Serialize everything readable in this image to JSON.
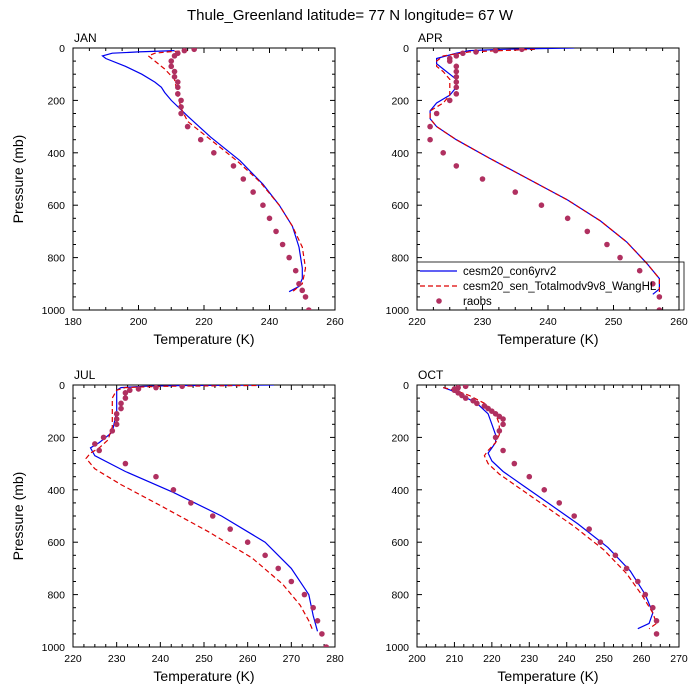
{
  "title": "Thule_Greenland  latitude= 77 N longitude= 67 W",
  "colors": {
    "model1": "#0000ee",
    "model2": "#dd0000",
    "obs": "#b03060"
  },
  "legend": {
    "model1": "cesm20_con6yrv2",
    "model2": "cesm20_sen_Totalmodv9v8_WangHL",
    "obs": "raobs"
  },
  "chart_data": [
    {
      "type": "line",
      "label": "JAN",
      "xlabel": "Temperature (K)",
      "ylabel": "Pressure (mb)",
      "xlim": [
        180,
        260
      ],
      "xticks": [
        180,
        200,
        220,
        240,
        260
      ],
      "ylim": [
        0,
        1000
      ],
      "yticks": [
        0,
        200,
        400,
        600,
        800,
        1000
      ],
      "y_inverted": true,
      "series": [
        {
          "name": "cesm20_con6yrv2",
          "style": "solid",
          "x": [
            211,
            200,
            192,
            189,
            190,
            196,
            201,
            205,
            207,
            208,
            210,
            215,
            222,
            231,
            238,
            243,
            247,
            249,
            250,
            250,
            249,
            246
          ],
          "y": [
            10,
            15,
            20,
            30,
            40,
            70,
            100,
            130,
            150,
            170,
            200,
            260,
            340,
            430,
            520,
            600,
            680,
            760,
            840,
            880,
            910,
            930
          ]
        },
        {
          "name": "cesm20_sen_Totalmodv9v8_WangHL",
          "style": "dashed",
          "x": [
            215,
            209,
            205,
            203,
            205,
            208,
            211,
            212,
            213,
            215,
            222,
            230,
            237,
            243,
            247,
            250,
            251,
            250,
            247
          ],
          "y": [
            10,
            15,
            20,
            30,
            50,
            80,
            120,
            180,
            230,
            280,
            350,
            430,
            510,
            600,
            680,
            760,
            840,
            900,
            930
          ]
        },
        {
          "name": "raobs",
          "style": "markers",
          "x": [
            217,
            214,
            212,
            211,
            210,
            210,
            211,
            211,
            212,
            212,
            212,
            213,
            213,
            213,
            215,
            219,
            223,
            229,
            232,
            235,
            238,
            240,
            242,
            244,
            246,
            248,
            249,
            250,
            251,
            252
          ],
          "y": [
            5,
            10,
            20,
            30,
            50,
            70,
            90,
            110,
            130,
            150,
            175,
            200,
            225,
            250,
            300,
            350,
            400,
            450,
            500,
            550,
            600,
            650,
            700,
            750,
            800,
            850,
            900,
            925,
            950,
            1000
          ]
        }
      ]
    },
    {
      "type": "line",
      "label": "APR",
      "xlabel": "Temperature (K)",
      "ylabel": "",
      "xlim": [
        220,
        260
      ],
      "xticks": [
        220,
        230,
        240,
        250,
        260
      ],
      "ylim": [
        0,
        1000
      ],
      "yticks": [
        0,
        200,
        400,
        600,
        800,
        1000
      ],
      "y_inverted": true,
      "series": [
        {
          "name": "cesm20_con6yrv2",
          "style": "solid",
          "x": [
            244,
            233,
            228,
            226,
            223,
            223,
            224,
            225,
            226,
            226,
            225,
            223,
            222,
            222,
            223,
            226,
            231,
            237,
            243,
            248,
            252,
            255,
            257,
            257,
            256
          ],
          "y": [
            0,
            5,
            10,
            20,
            40,
            60,
            80,
            100,
            120,
            150,
            180,
            210,
            240,
            270,
            300,
            350,
            420,
            500,
            580,
            660,
            740,
            820,
            880,
            920,
            940
          ]
        },
        {
          "name": "cesm20_sen_Totalmodv9v8_WangHL",
          "style": "dashed",
          "x": [
            238,
            228,
            224,
            223,
            223,
            224,
            225,
            225,
            225,
            224,
            222,
            222,
            223,
            226,
            231,
            237,
            243,
            248,
            252,
            255,
            257,
            257
          ],
          "y": [
            5,
            15,
            30,
            50,
            70,
            90,
            120,
            150,
            180,
            210,
            240,
            270,
            300,
            350,
            420,
            500,
            580,
            660,
            740,
            820,
            880,
            940
          ]
        },
        {
          "name": "raobs",
          "style": "markers",
          "x": [
            236,
            232,
            229,
            227,
            226,
            225,
            225,
            226,
            226,
            226,
            226,
            226,
            226,
            225,
            223,
            222,
            222,
            224,
            226,
            230,
            235,
            239,
            243,
            246,
            249,
            251,
            254,
            256,
            257,
            257
          ],
          "y": [
            5,
            10,
            15,
            20,
            30,
            40,
            50,
            70,
            90,
            110,
            130,
            150,
            175,
            200,
            250,
            300,
            350,
            400,
            450,
            500,
            550,
            600,
            650,
            700,
            750,
            800,
            850,
            900,
            950,
            1000
          ]
        }
      ]
    },
    {
      "type": "line",
      "label": "JUL",
      "xlabel": "Temperature (K)",
      "ylabel": "Pressure (mb)",
      "xlim": [
        220,
        280
      ],
      "xticks": [
        220,
        230,
        240,
        250,
        260,
        270,
        280
      ],
      "ylim": [
        0,
        1000
      ],
      "yticks": [
        0,
        200,
        400,
        600,
        800,
        1000
      ],
      "y_inverted": true,
      "series": [
        {
          "name": "cesm20_con6yrv2",
          "style": "solid",
          "x": [
            266,
            245,
            236,
            231,
            230,
            230,
            230,
            229,
            226,
            224,
            225,
            232,
            243,
            254,
            264,
            270,
            274,
            275,
            276
          ],
          "y": [
            0,
            2,
            5,
            10,
            20,
            50,
            100,
            180,
            220,
            240,
            270,
            330,
            410,
            500,
            600,
            700,
            800,
            880,
            940
          ]
        },
        {
          "name": "cesm20_sen_Totalmodv9v8_WangHL",
          "style": "dashed",
          "x": [
            262,
            240,
            232,
            230,
            229,
            229,
            229,
            228,
            226,
            224,
            223,
            225,
            231,
            240,
            251,
            261,
            268,
            272,
            274,
            275
          ],
          "y": [
            2,
            5,
            10,
            20,
            50,
            100,
            160,
            210,
            240,
            260,
            280,
            320,
            380,
            460,
            560,
            660,
            760,
            840,
            900,
            940
          ]
        },
        {
          "name": "raobs",
          "style": "markers",
          "x": [
            245,
            239,
            235,
            233,
            232,
            232,
            231,
            231,
            230,
            230,
            230,
            229,
            227,
            225,
            226,
            232,
            239,
            243,
            247,
            252,
            256,
            260,
            264,
            267,
            270,
            273,
            275,
            276,
            277,
            278
          ],
          "y": [
            5,
            10,
            15,
            20,
            30,
            50,
            70,
            90,
            110,
            130,
            150,
            175,
            200,
            225,
            250,
            300,
            350,
            400,
            450,
            500,
            550,
            600,
            650,
            700,
            750,
            800,
            850,
            900,
            950,
            1000
          ]
        }
      ]
    },
    {
      "type": "line",
      "label": "OCT",
      "xlabel": "Temperature (K)",
      "ylabel": "",
      "xlim": [
        200,
        270
      ],
      "xticks": [
        200,
        210,
        220,
        230,
        240,
        250,
        260,
        270
      ],
      "ylim": [
        0,
        1000
      ],
      "yticks": [
        0,
        200,
        400,
        600,
        800,
        1000
      ],
      "y_inverted": true,
      "series": [
        {
          "name": "cesm20_con6yrv2",
          "style": "solid",
          "x": [
            207,
            209,
            212,
            216,
            219,
            220,
            221,
            221,
            220,
            219,
            220,
            223,
            228,
            235,
            243,
            251,
            257,
            261,
            263,
            262,
            259
          ],
          "y": [
            10,
            20,
            40,
            70,
            110,
            150,
            190,
            220,
            240,
            260,
            290,
            330,
            380,
            450,
            530,
            620,
            710,
            800,
            870,
            910,
            930
          ]
        },
        {
          "name": "cesm20_sen_Totalmodv9v8_WangHL",
          "style": "dashed",
          "x": [
            207,
            210,
            214,
            218,
            221,
            222,
            222,
            221,
            219,
            218,
            219,
            222,
            227,
            234,
            242,
            250,
            256,
            260,
            263,
            264,
            262
          ],
          "y": [
            10,
            20,
            40,
            70,
            110,
            150,
            190,
            220,
            250,
            270,
            300,
            340,
            390,
            460,
            540,
            630,
            720,
            800,
            870,
            910,
            930
          ]
        },
        {
          "name": "raobs",
          "style": "markers",
          "x": [
            213,
            211,
            210,
            210,
            211,
            212,
            213,
            215,
            216,
            218,
            219,
            220,
            221,
            222,
            223,
            223,
            222,
            221,
            223,
            226,
            230,
            234,
            238,
            242,
            246,
            249,
            253,
            256,
            259,
            261,
            263,
            264,
            264
          ],
          "y": [
            5,
            10,
            15,
            20,
            30,
            40,
            50,
            60,
            70,
            80,
            90,
            100,
            110,
            120,
            130,
            150,
            175,
            200,
            250,
            300,
            350,
            400,
            450,
            500,
            550,
            600,
            650,
            700,
            750,
            800,
            850,
            900,
            950
          ]
        }
      ]
    }
  ]
}
